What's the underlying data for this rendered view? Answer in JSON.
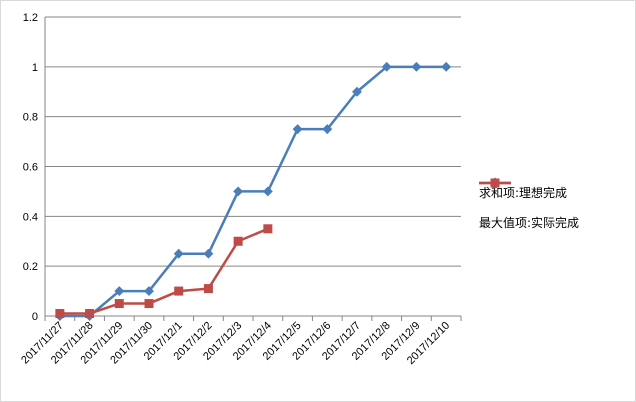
{
  "chart_data": {
    "type": "line",
    "categories": [
      "2017/11/27",
      "2017/11/28",
      "2017/11/29",
      "2017/11/30",
      "2017/12/1",
      "2017/12/2",
      "2017/12/3",
      "2017/12/4",
      "2017/12/5",
      "2017/12/6",
      "2017/12/7",
      "2017/12/8",
      "2017/12/9",
      "2017/12/10"
    ],
    "ylim": [
      0,
      1.2
    ],
    "yticks": [
      "0",
      "0.2",
      "0.4",
      "0.6",
      "0.8",
      "1",
      "1.2"
    ],
    "grid": true,
    "legend_position": "right",
    "series": [
      {
        "name": "求和项:理想完成",
        "color": "#4a7ebb",
        "marker": "diamond",
        "values": [
          0,
          0,
          0.1,
          0.1,
          0.25,
          0.25,
          0.5,
          0.5,
          0.75,
          0.75,
          0.9,
          1.0,
          1.0,
          1.0
        ]
      },
      {
        "name": "最大值项:实际完成",
        "color": "#be4b48",
        "marker": "square",
        "values": [
          0.01,
          0.01,
          0.05,
          0.05,
          0.1,
          0.11,
          0.3,
          0.35,
          null,
          null,
          null,
          null,
          null,
          null
        ]
      }
    ]
  }
}
